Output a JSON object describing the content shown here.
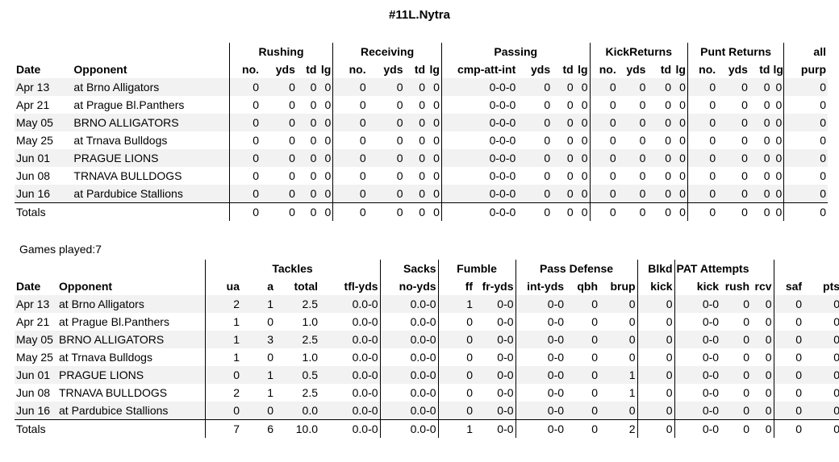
{
  "title": "#11L.Nytra",
  "games_played": "Games played:7",
  "offense": {
    "groups": [
      "Rushing",
      "Receiving",
      "Passing",
      "KickReturns",
      "Punt Returns",
      "all"
    ],
    "headers": [
      "Date",
      "Opponent",
      "no.",
      "yds",
      "td",
      "lg",
      "no.",
      "yds",
      "td",
      "lg",
      "cmp-att-int",
      "yds",
      "td",
      "lg",
      "no.",
      "yds",
      "td",
      "lg",
      "no.",
      "yds",
      "td",
      "lg",
      "purp"
    ],
    "rows": [
      [
        "Apr 13",
        "at Brno Alligators",
        "0",
        "0",
        "0",
        "0",
        "0",
        "0",
        "0",
        "0",
        "0-0-0",
        "0",
        "0",
        "0",
        "0",
        "0",
        "0",
        "0",
        "0",
        "0",
        "0",
        "0",
        "0"
      ],
      [
        "Apr 21",
        "at Prague Bl.Panthers",
        "0",
        "0",
        "0",
        "0",
        "0",
        "0",
        "0",
        "0",
        "0-0-0",
        "0",
        "0",
        "0",
        "0",
        "0",
        "0",
        "0",
        "0",
        "0",
        "0",
        "0",
        "0"
      ],
      [
        "May 05",
        "BRNO ALLIGATORS",
        "0",
        "0",
        "0",
        "0",
        "0",
        "0",
        "0",
        "0",
        "0-0-0",
        "0",
        "0",
        "0",
        "0",
        "0",
        "0",
        "0",
        "0",
        "0",
        "0",
        "0",
        "0"
      ],
      [
        "May 25",
        "at Trnava Bulldogs",
        "0",
        "0",
        "0",
        "0",
        "0",
        "0",
        "0",
        "0",
        "0-0-0",
        "0",
        "0",
        "0",
        "0",
        "0",
        "0",
        "0",
        "0",
        "0",
        "0",
        "0",
        "0"
      ],
      [
        "Jun 01",
        "PRAGUE LIONS",
        "0",
        "0",
        "0",
        "0",
        "0",
        "0",
        "0",
        "0",
        "0-0-0",
        "0",
        "0",
        "0",
        "0",
        "0",
        "0",
        "0",
        "0",
        "0",
        "0",
        "0",
        "0"
      ],
      [
        "Jun 08",
        "TRNAVA BULLDOGS",
        "0",
        "0",
        "0",
        "0",
        "0",
        "0",
        "0",
        "0",
        "0-0-0",
        "0",
        "0",
        "0",
        "0",
        "0",
        "0",
        "0",
        "0",
        "0",
        "0",
        "0",
        "0"
      ],
      [
        "Jun 16",
        "at Pardubice Stallions",
        "0",
        "0",
        "0",
        "0",
        "0",
        "0",
        "0",
        "0",
        "0-0-0",
        "0",
        "0",
        "0",
        "0",
        "0",
        "0",
        "0",
        "0",
        "0",
        "0",
        "0",
        "0"
      ]
    ],
    "totals": [
      "Totals",
      "",
      "0",
      "0",
      "0",
      "0",
      "0",
      "0",
      "0",
      "0",
      "0-0-0",
      "0",
      "0",
      "0",
      "0",
      "0",
      "0",
      "0",
      "0",
      "0",
      "0",
      "0",
      "0"
    ]
  },
  "defense": {
    "groups": [
      "Tackles",
      "Sacks",
      "Fumble",
      "Pass Defense",
      "Blkd",
      "PAT Attempts"
    ],
    "headers": [
      "Date",
      "Opponent",
      "ua",
      "a",
      "total",
      "tfl-yds",
      "no-yds",
      "ff",
      "fr-yds",
      "int-yds",
      "qbh",
      "brup",
      "kick",
      "kick",
      "rush",
      "rcv",
      "saf",
      "pts"
    ],
    "rows": [
      [
        "Apr 13",
        "at Brno Alligators",
        "2",
        "1",
        "2.5",
        "0.0-0",
        "0.0-0",
        "1",
        "0-0",
        "0-0",
        "0",
        "0",
        "0",
        "0-0",
        "0",
        "0",
        "0",
        "0"
      ],
      [
        "Apr 21",
        "at Prague Bl.Panthers",
        "1",
        "0",
        "1.0",
        "0.0-0",
        "0.0-0",
        "0",
        "0-0",
        "0-0",
        "0",
        "0",
        "0",
        "0-0",
        "0",
        "0",
        "0",
        "0"
      ],
      [
        "May 05",
        "BRNO ALLIGATORS",
        "1",
        "3",
        "2.5",
        "0.0-0",
        "0.0-0",
        "0",
        "0-0",
        "0-0",
        "0",
        "0",
        "0",
        "0-0",
        "0",
        "0",
        "0",
        "0"
      ],
      [
        "May 25",
        "at Trnava Bulldogs",
        "1",
        "0",
        "1.0",
        "0.0-0",
        "0.0-0",
        "0",
        "0-0",
        "0-0",
        "0",
        "0",
        "0",
        "0-0",
        "0",
        "0",
        "0",
        "0"
      ],
      [
        "Jun 01",
        "PRAGUE LIONS",
        "0",
        "1",
        "0.5",
        "0.0-0",
        "0.0-0",
        "0",
        "0-0",
        "0-0",
        "0",
        "1",
        "0",
        "0-0",
        "0",
        "0",
        "0",
        "0"
      ],
      [
        "Jun 08",
        "TRNAVA BULLDOGS",
        "2",
        "1",
        "2.5",
        "0.0-0",
        "0.0-0",
        "0",
        "0-0",
        "0-0",
        "0",
        "1",
        "0",
        "0-0",
        "0",
        "0",
        "0",
        "0"
      ],
      [
        "Jun 16",
        "at Pardubice Stallions",
        "0",
        "0",
        "0.0",
        "0.0-0",
        "0.0-0",
        "0",
        "0-0",
        "0-0",
        "0",
        "0",
        "0",
        "0-0",
        "0",
        "0",
        "0",
        "0"
      ]
    ],
    "totals": [
      "Totals",
      "",
      "7",
      "6",
      "10.0",
      "0.0-0",
      "0.0-0",
      "1",
      "0-0",
      "0-0",
      "0",
      "2",
      "0",
      "0-0",
      "0",
      "0",
      "0",
      "0"
    ]
  }
}
